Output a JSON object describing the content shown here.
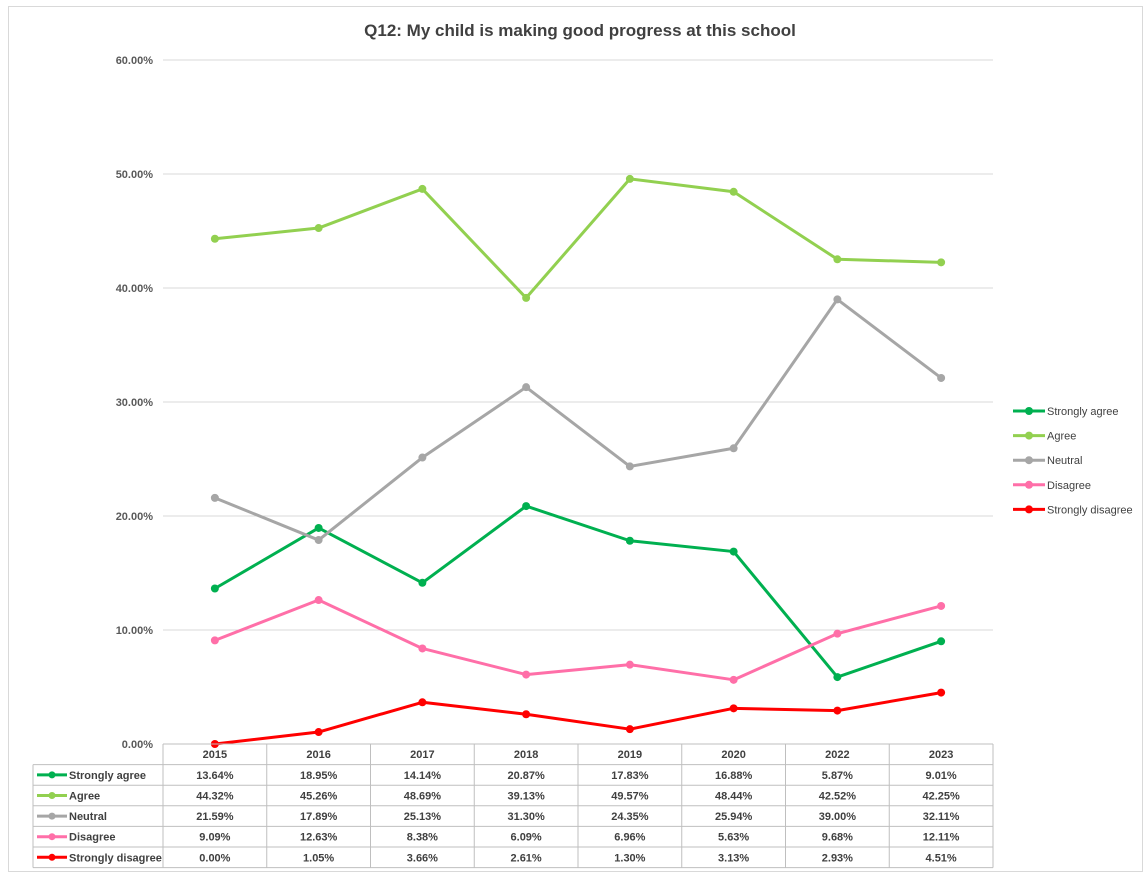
{
  "chart_data": {
    "type": "line",
    "title": "Q12: My child is making good progress at this school",
    "categories": [
      "2015",
      "2016",
      "2017",
      "2018",
      "2019",
      "2020",
      "2022",
      "2023"
    ],
    "ylim": [
      0,
      60
    ],
    "yticks": [
      "0.00%",
      "10.00%",
      "20.00%",
      "30.00%",
      "40.00%",
      "50.00%",
      "60.00%"
    ],
    "grid": true,
    "legend": "right",
    "series": [
      {
        "name": "Strongly agree",
        "color": "#00b050",
        "values": [
          13.64,
          18.95,
          14.14,
          20.87,
          17.83,
          16.88,
          5.87,
          9.01
        ],
        "labels": [
          "13.64%",
          "18.95%",
          "14.14%",
          "20.87%",
          "17.83%",
          "16.88%",
          "5.87%",
          "9.01%"
        ]
      },
      {
        "name": "Agree",
        "color": "#92d050",
        "values": [
          44.32,
          45.26,
          48.69,
          39.13,
          49.57,
          48.44,
          42.52,
          42.25
        ],
        "labels": [
          "44.32%",
          "45.26%",
          "48.69%",
          "39.13%",
          "49.57%",
          "48.44%",
          "42.52%",
          "42.25%"
        ]
      },
      {
        "name": "Neutral",
        "color": "#a6a6a6",
        "values": [
          21.59,
          17.89,
          25.13,
          31.3,
          24.35,
          25.94,
          39.0,
          32.11
        ],
        "labels": [
          "21.59%",
          "17.89%",
          "25.13%",
          "31.30%",
          "24.35%",
          "25.94%",
          "39.00%",
          "32.11%"
        ]
      },
      {
        "name": "Disagree",
        "color": "#ff6fa8",
        "values": [
          9.09,
          12.63,
          8.38,
          6.09,
          6.96,
          5.63,
          9.68,
          12.11
        ],
        "labels": [
          "9.09%",
          "12.63%",
          "8.38%",
          "6.09%",
          "6.96%",
          "5.63%",
          "9.68%",
          "12.11%"
        ]
      },
      {
        "name": "Strongly disagree",
        "color": "#ff0000",
        "values": [
          0.0,
          1.05,
          3.66,
          2.61,
          1.3,
          3.13,
          2.93,
          4.51
        ],
        "labels": [
          "0.00%",
          "1.05%",
          "3.66%",
          "2.61%",
          "1.30%",
          "3.13%",
          "2.93%",
          "4.51%"
        ]
      }
    ]
  }
}
